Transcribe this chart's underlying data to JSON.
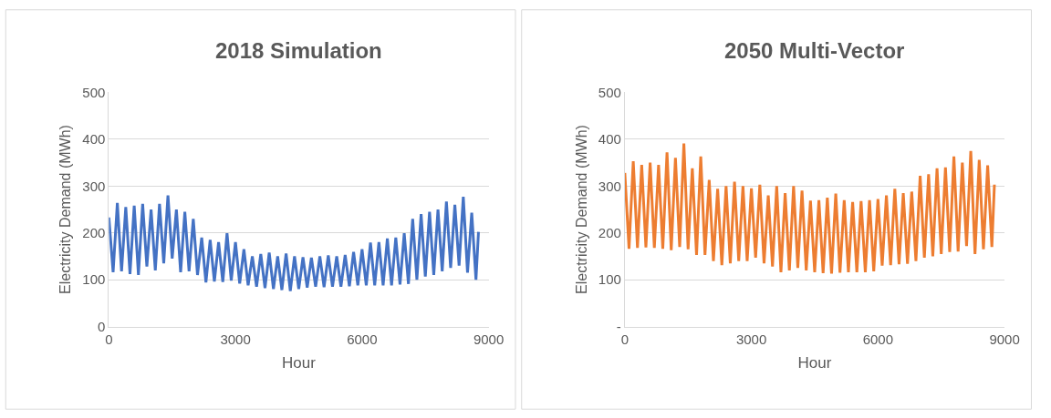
{
  "chart_data": [
    {
      "type": "line",
      "title": "2018 Simulation",
      "xlabel": "Hour",
      "ylabel": "Electricity Demand (MWh)",
      "grid": "y",
      "xlim": [
        0,
        9000
      ],
      "xticks": [
        0,
        3000,
        6000,
        9000
      ],
      "ylim": [
        0,
        500
      ],
      "yticks": [
        0,
        100,
        200,
        300,
        400,
        500
      ],
      "x": [
        0,
        100,
        200,
        300,
        400,
        500,
        600,
        700,
        800,
        900,
        1000,
        1100,
        1200,
        1300,
        1400,
        1500,
        1600,
        1700,
        1800,
        1900,
        2000,
        2100,
        2200,
        2300,
        2400,
        2500,
        2600,
        2700,
        2800,
        2900,
        3000,
        3100,
        3200,
        3300,
        3400,
        3500,
        3600,
        3700,
        3800,
        3900,
        4000,
        4100,
        4200,
        4300,
        4400,
        4500,
        4600,
        4700,
        4800,
        4900,
        5000,
        5100,
        5200,
        5300,
        5400,
        5500,
        5600,
        5700,
        5800,
        5900,
        6000,
        6100,
        6200,
        6300,
        6400,
        6500,
        6600,
        6700,
        6800,
        6900,
        7000,
        7100,
        7200,
        7300,
        7400,
        7500,
        7600,
        7700,
        7800,
        7900,
        8000,
        8100,
        8200,
        8300,
        8400,
        8500,
        8600,
        8700,
        8760
      ],
      "series": [
        {
          "color": "#4472c4",
          "values": [
            233,
            116,
            264,
            118,
            255,
            112,
            258,
            110,
            262,
            128,
            250,
            120,
            262,
            135,
            280,
            145,
            250,
            116,
            245,
            118,
            230,
            110,
            190,
            94,
            185,
            96,
            180,
            95,
            199,
            98,
            180,
            92,
            165,
            88,
            150,
            85,
            155,
            82,
            158,
            80,
            150,
            78,
            156,
            76,
            150,
            80,
            148,
            83,
            147,
            85,
            150,
            84,
            152,
            85,
            150,
            85,
            153,
            86,
            159,
            88,
            165,
            88,
            179,
            88,
            180,
            88,
            188,
            88,
            190,
            90,
            199,
            91,
            230,
            100,
            240,
            107,
            245,
            110,
            250,
            118,
            267,
            125,
            260,
            130,
            277,
            115,
            243,
            100,
            202
          ]
        }
      ]
    },
    {
      "type": "line",
      "title": "2050 Multi-Vector",
      "xlabel": "Hour",
      "ylabel": "Electricity Demand (MWh)",
      "grid": "y",
      "xlim": [
        0,
        9000
      ],
      "xticks": [
        0,
        3000,
        6000,
        9000
      ],
      "ylim": [
        0,
        500
      ],
      "yticks": [
        {
          "value": 0,
          "label": "-"
        },
        100,
        200,
        300,
        400,
        500
      ],
      "x": [
        0,
        100,
        200,
        300,
        400,
        500,
        600,
        700,
        800,
        900,
        1000,
        1100,
        1200,
        1300,
        1400,
        1500,
        1600,
        1700,
        1800,
        1900,
        2000,
        2100,
        2200,
        2300,
        2400,
        2500,
        2600,
        2700,
        2800,
        2900,
        3000,
        3100,
        3200,
        3300,
        3400,
        3500,
        3600,
        3700,
        3800,
        3900,
        4000,
        4100,
        4200,
        4300,
        4400,
        4500,
        4600,
        4700,
        4800,
        4900,
        5000,
        5100,
        5200,
        5300,
        5400,
        5500,
        5600,
        5700,
        5800,
        5900,
        6000,
        6100,
        6200,
        6300,
        6400,
        6500,
        6600,
        6700,
        6800,
        6900,
        7000,
        7100,
        7200,
        7300,
        7400,
        7500,
        7600,
        7700,
        7800,
        7900,
        8000,
        8100,
        8200,
        8300,
        8400,
        8500,
        8600,
        8700,
        8760
      ],
      "series": [
        {
          "color": "#ed7d31",
          "values": [
            328,
            166,
            353,
            168,
            345,
            169,
            350,
            168,
            345,
            166,
            372,
            163,
            360,
            170,
            391,
            165,
            338,
            153,
            363,
            153,
            313,
            140,
            294,
            131,
            300,
            135,
            309,
            140,
            300,
            140,
            295,
            147,
            303,
            135,
            280,
            128,
            300,
            116,
            285,
            120,
            300,
            125,
            290,
            120,
            269,
            116,
            270,
            114,
            275,
            113,
            284,
            115,
            270,
            116,
            266,
            116,
            268,
            116,
            270,
            118,
            272,
            130,
            280,
            131,
            294,
            133,
            285,
            134,
            288,
            140,
            322,
            147,
            325,
            150,
            338,
            155,
            340,
            159,
            363,
            160,
            350,
            172,
            375,
            155,
            356,
            165,
            344,
            170,
            303
          ]
        }
      ]
    }
  ]
}
